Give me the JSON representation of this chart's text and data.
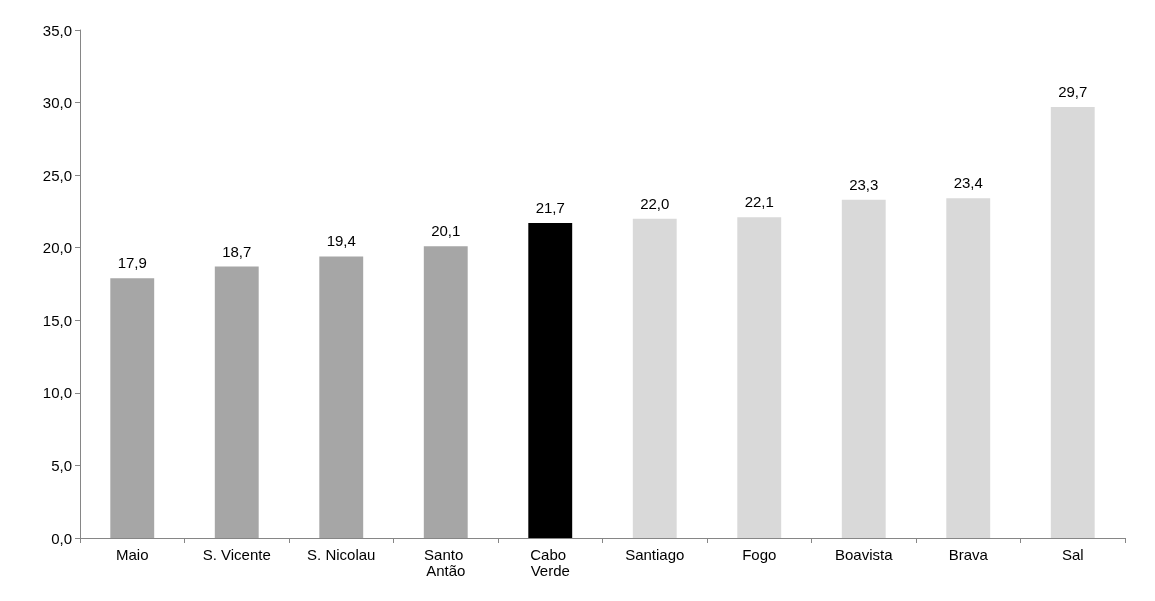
{
  "chart_data": {
    "type": "bar",
    "categories": [
      "Maio",
      "S. Vicente",
      "S. Nicolau",
      "Santo Antão",
      "Cabo Verde",
      "Santiago",
      "Fogo",
      "Boavista",
      "Brava",
      "Sal"
    ],
    "values": [
      17.9,
      18.7,
      19.4,
      20.1,
      21.7,
      22.0,
      22.1,
      23.3,
      23.4,
      29.7
    ],
    "value_labels": [
      "17,9",
      "18,7",
      "19,4",
      "20,1",
      "21,7",
      "22,0",
      "22,1",
      "23,3",
      "23,4",
      "29,7"
    ],
    "colors": [
      "#a6a6a6",
      "#a6a6a6",
      "#a6a6a6",
      "#a6a6a6",
      "#000000",
      "#d9d9d9",
      "#d9d9d9",
      "#d9d9d9",
      "#d9d9d9",
      "#d9d9d9"
    ],
    "ylim": [
      0,
      35
    ],
    "yticks": [
      {
        "value": 0,
        "label": "0,0"
      },
      {
        "value": 5,
        "label": "5,0"
      },
      {
        "value": 10,
        "label": "10,0"
      },
      {
        "value": 15,
        "label": "15,0"
      },
      {
        "value": 20,
        "label": "20,0"
      },
      {
        "value": 25,
        "label": "25,0"
      },
      {
        "value": 30,
        "label": "30,0"
      },
      {
        "value": 35,
        "label": "35,0"
      }
    ]
  }
}
